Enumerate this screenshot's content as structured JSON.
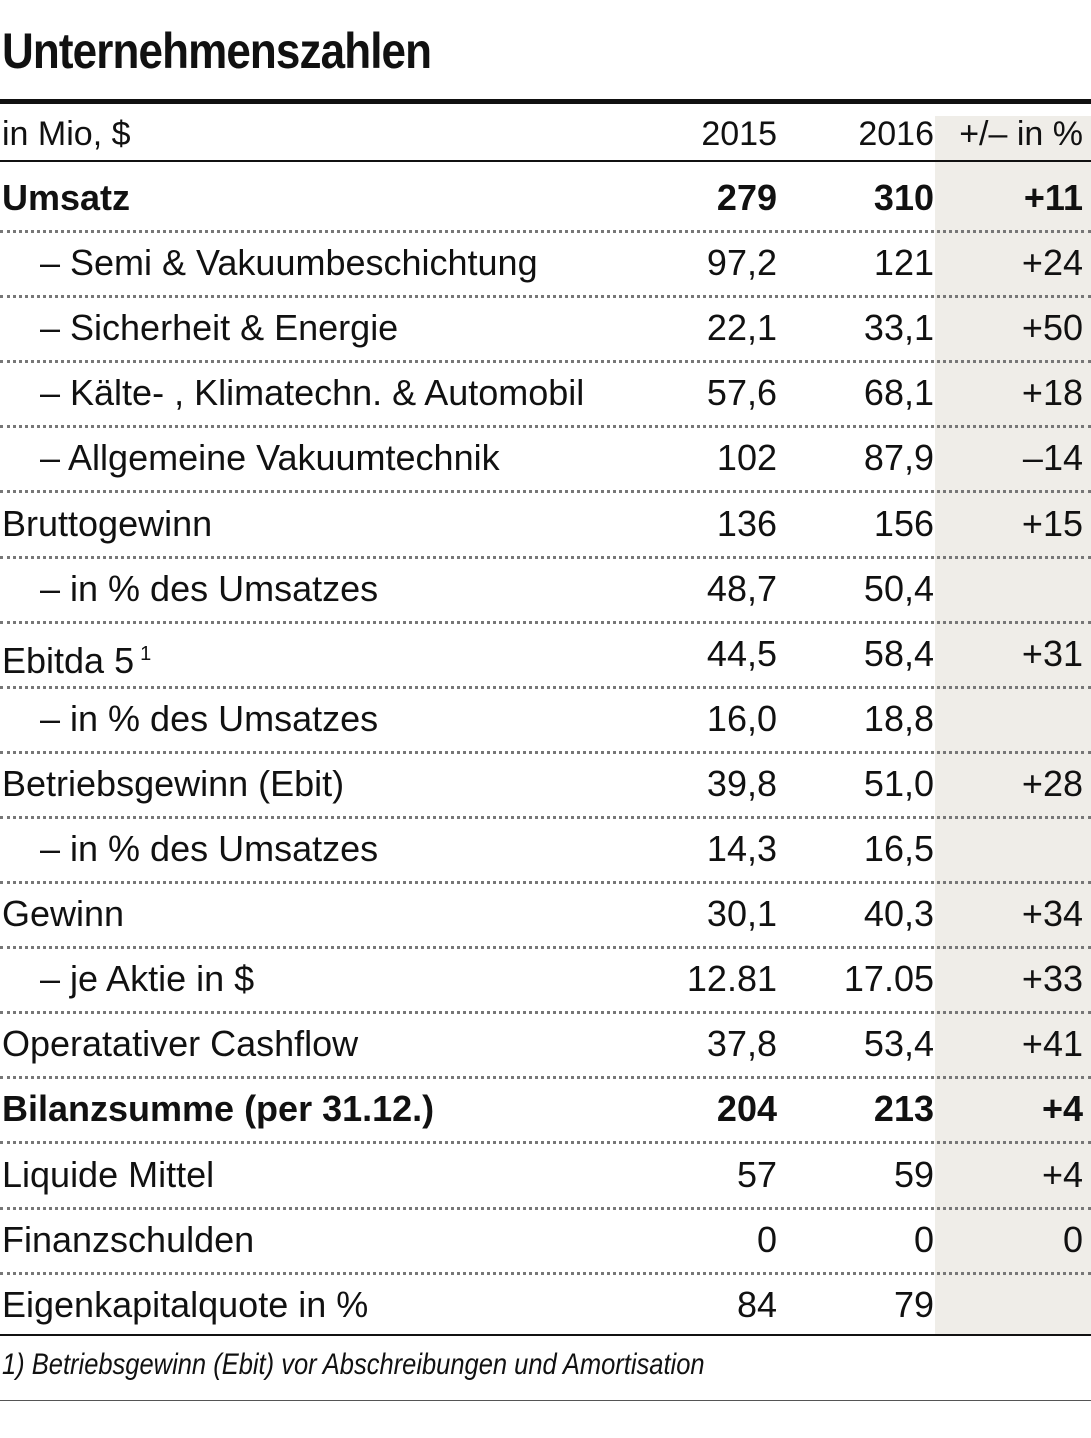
{
  "title": "Unternehmenszahlen",
  "table": {
    "header": [
      "in Mio, $",
      "2015",
      "2016",
      "+/– in %"
    ],
    "rows": [
      {
        "cells": [
          "Umsatz",
          "279",
          "310",
          "+11"
        ],
        "bold": true
      },
      {
        "cells": [
          "– Semi & Vakuumbeschichtung",
          "97,2",
          "121",
          "+24"
        ],
        "indent": true
      },
      {
        "cells": [
          "– Sicherheit & Energie",
          "22,1",
          "33,1",
          "+50"
        ],
        "indent": true
      },
      {
        "cells": [
          "– Kälte- , Klimatechn. & Automobil",
          "57,6",
          "68,1",
          "+18"
        ],
        "indent": true
      },
      {
        "cells": [
          "– Allgemeine Vakuumtechnik",
          "102",
          "87,9",
          "–14"
        ],
        "indent": true
      },
      {
        "cells": [
          "Bruttogewinn",
          "136",
          "156",
          "+15"
        ]
      },
      {
        "cells": [
          "– in % des Umsatzes",
          "48,7",
          "50,4"
        ],
        "indent": true
      },
      {
        "cells": [
          "Ebitda 5",
          "44,5",
          "58,4",
          "+31"
        ],
        "footnote_ref": "1"
      },
      {
        "cells": [
          "– in % des Umsatzes",
          "16,0",
          "18,8"
        ],
        "indent": true
      },
      {
        "cells": [
          "Betriebsgewinn (Ebit)",
          "39,8",
          "51,0",
          "+28"
        ]
      },
      {
        "cells": [
          "– in % des Umsatzes",
          "14,3",
          "16,5"
        ],
        "indent": true
      },
      {
        "cells": [
          "Gewinn",
          "30,1",
          "40,3",
          "+34"
        ]
      },
      {
        "cells": [
          "– je Aktie in $",
          "12.81",
          "17.05",
          "+33"
        ],
        "indent": true
      },
      {
        "cells": [
          "Operatativer Cashflow",
          "37,8",
          "53,4",
          "+41"
        ]
      },
      {
        "cells": [
          "Bilanzsumme (per 31.12.)",
          "204",
          "213",
          "+4"
        ],
        "bold": true
      },
      {
        "cells": [
          "Liquide Mittel",
          "57",
          "59",
          "+4"
        ]
      },
      {
        "cells": [
          "Finanzschulden",
          "0",
          "0",
          "0"
        ]
      },
      {
        "cells": [
          "Eigenkapitalquote in %",
          "84",
          "79"
        ]
      }
    ]
  },
  "footnote": "1) Betriebsgewinn (Ebit) vor Abschreibungen und Amortisation"
}
